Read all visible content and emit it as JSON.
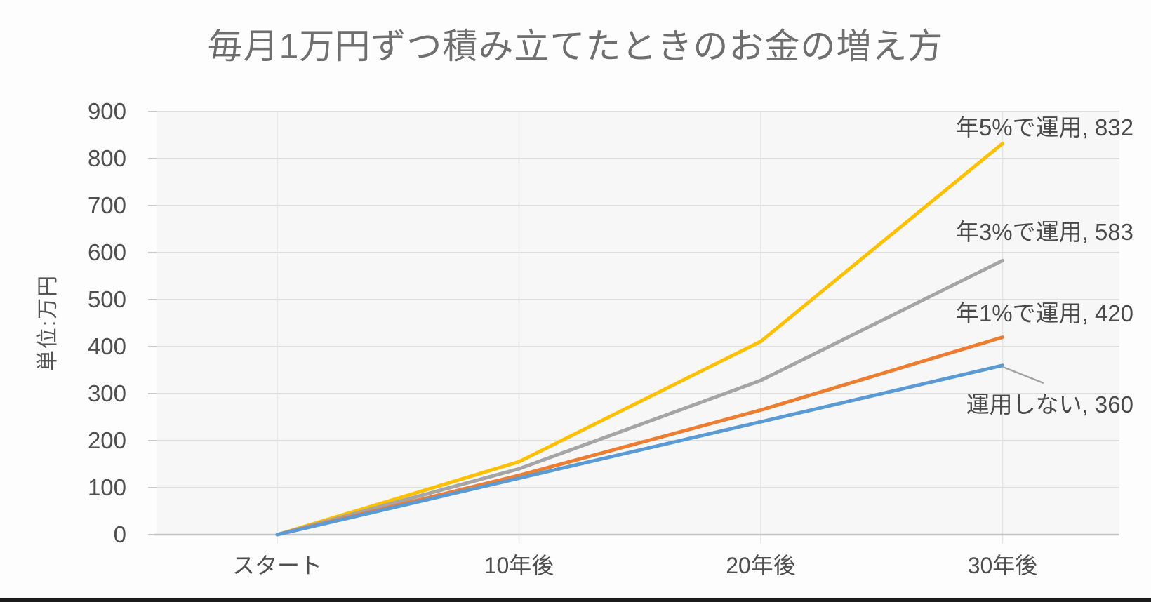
{
  "page": {
    "bottom_border_color": "#1c1c1c",
    "background": "#fdfdfd"
  },
  "chart_data": {
    "type": "line",
    "title": "毎月1万円ずつ積み立てたときのお金の増え方",
    "ylabel": "単位:万円",
    "xlabel": "",
    "categories": [
      "スタート",
      "10年後",
      "20年後",
      "30年後"
    ],
    "series": [
      {
        "name": "年5%で運用",
        "values": [
          0,
          155,
          411,
          832
        ],
        "color": "#FFC000",
        "end_label": "年5%で運用, 832"
      },
      {
        "name": "年3%で運用",
        "values": [
          0,
          140,
          328,
          583
        ],
        "color": "#A5A5A5",
        "end_label": "年3%で運用, 583"
      },
      {
        "name": "年1%で運用",
        "values": [
          0,
          126,
          265,
          420
        ],
        "color": "#ED7D31",
        "end_label": "年1%で運用, 420"
      },
      {
        "name": "運用しない",
        "values": [
          0,
          120,
          240,
          360
        ],
        "color": "#5B9BD5",
        "end_label": "運用しない, 360"
      }
    ],
    "ylim": [
      0,
      900
    ],
    "yticks": [
      0,
      100,
      200,
      300,
      400,
      500,
      600,
      700,
      800,
      900
    ],
    "grid": true,
    "legend_position": "none",
    "label_style": "end-of-line value callouts",
    "leader_line_series": "運用しない",
    "title_color": "#6f6f6f",
    "axis_text_color": "#4f4f4f",
    "gridline_color": "#dedede",
    "axis_line_color": "#c6c6c6"
  }
}
